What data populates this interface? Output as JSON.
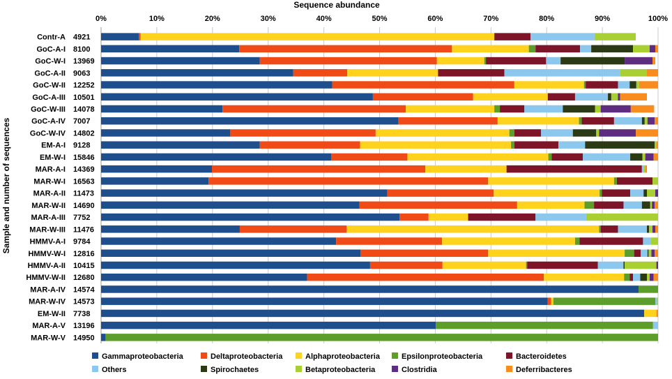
{
  "chart_data": {
    "type": "bar",
    "orientation": "horizontal",
    "stacked": true,
    "title": "Sequence abundance",
    "xlabel": "Sequence abundance",
    "ylabel": "Sample and number of sequences",
    "xlim": [
      0,
      100
    ],
    "x_tick_labels": [
      "0%",
      "10%",
      "20%",
      "30%",
      "40%",
      "50%",
      "60%",
      "70%",
      "80%",
      "90%",
      "100%"
    ],
    "grid": true,
    "legend_position": "bottom",
    "categories": [
      "Contr-A",
      "GoC-A-I",
      "GoC-W-I",
      "GoC-A-II",
      "GoC-W-II",
      "GoC-A-III",
      "GoC-W-III",
      "GoC-A-IV",
      "GoC-W-IV",
      "EM-A-I",
      "EM-W-I",
      "MAR-A-I",
      "MAR-W-I",
      "MAR-A-II",
      "MAR-W-II",
      "MAR-A-III",
      "MAR-W-III",
      "HMMV-A-I",
      "HMMV-W-I",
      "HMMV-A-II",
      "HMMV-W-II",
      "MAR-A-IV",
      "MAR-W-IV",
      "EM-W-II",
      "MAR-A-V",
      "MAR-W-V"
    ],
    "sequence_counts": [
      "4921",
      "8100",
      "13969",
      "9063",
      "12252",
      "10501",
      "14078",
      "7007",
      "14802",
      "9128",
      "15846",
      "14369",
      "16563",
      "11473",
      "14690",
      "7752",
      "11476",
      "9784",
      "12816",
      "10415",
      "12680",
      "14574",
      "14573",
      "7738",
      "13196",
      "14950"
    ],
    "series": [
      {
        "name": "Gammaproteobacteria",
        "color": "#1f4e8c",
        "values": [
          6.8,
          24.8,
          28.5,
          34.5,
          41.5,
          48.8,
          21.8,
          53.4,
          23.2,
          28.5,
          41.3,
          19.9,
          19.3,
          51.4,
          46.4,
          53.6,
          24.9,
          42.2,
          46.6,
          48.3,
          37.0,
          96.5,
          80.2,
          97.5,
          60.1,
          0.8
        ]
      },
      {
        "name": "Deltaproteobacteria",
        "color": "#f04b16",
        "values": [
          0.3,
          38.2,
          31.8,
          9.7,
          32.7,
          18.0,
          32.9,
          17.8,
          26.1,
          18.0,
          13.7,
          38.3,
          50.2,
          19.1,
          28.3,
          5.2,
          19.2,
          19.0,
          22.9,
          13.0,
          42.5,
          0.0,
          0.6,
          0.0,
          0.0,
          0.0
        ]
      },
      {
        "name": "Alphaproteobacteria",
        "color": "#ffd21e",
        "values": [
          63.5,
          13.8,
          8.5,
          16.3,
          12.5,
          13.4,
          15.9,
          14.6,
          24.0,
          27.1,
          25.3,
          14.6,
          22.6,
          19.0,
          12.1,
          7.1,
          45.3,
          23.9,
          24.5,
          15.0,
          14.4,
          0.0,
          0.4,
          2.2,
          0.0,
          0.0
        ]
      },
      {
        "name": "Epsilonproteobacteria",
        "color": "#5d9e2b",
        "values": [
          0.0,
          1.2,
          0.3,
          0.0,
          0.3,
          0.0,
          1.0,
          0.5,
          0.9,
          0.6,
          0.6,
          0.0,
          0.5,
          0.4,
          1.7,
          0.0,
          0.3,
          0.8,
          1.7,
          0.2,
          1.0,
          3.5,
          18.3,
          0.0,
          39.0,
          99.2
        ]
      },
      {
        "name": "Bacteroidetes",
        "color": "#7e1428",
        "values": [
          6.5,
          8.0,
          10.8,
          11.9,
          5.8,
          4.9,
          4.4,
          5.8,
          4.8,
          7.9,
          5.6,
          24.3,
          6.4,
          5.1,
          5.3,
          12.1,
          3.1,
          11.4,
          1.2,
          12.7,
          0.6,
          0.0,
          0.0,
          0.0,
          0.0,
          0.0
        ]
      },
      {
        "name": "Others",
        "color": "#8cc8ee",
        "values": [
          11.5,
          2.0,
          2.6,
          20.8,
          2.1,
          5.9,
          6.9,
          5.0,
          5.7,
          4.8,
          8.5,
          0.3,
          0.0,
          2.4,
          3.3,
          9.1,
          5.2,
          1.4,
          1.2,
          4.6,
          1.3,
          0.0,
          0.3,
          0.0,
          0.9,
          0.0
        ]
      },
      {
        "name": "Spirochaetes",
        "color": "#2b3a14",
        "values": [
          0.0,
          7.5,
          11.5,
          0.0,
          1.2,
          0.6,
          5.8,
          0.5,
          4.2,
          12.5,
          2.2,
          0.0,
          0.0,
          0.6,
          1.5,
          0.0,
          0.4,
          0.0,
          0.2,
          0.2,
          1.2,
          0.0,
          0.0,
          0.0,
          0.0,
          0.0
        ]
      },
      {
        "name": "Betaproteobacteria",
        "color": "#a8d032",
        "values": [
          7.4,
          3.0,
          0.0,
          4.8,
          0.5,
          1.2,
          1.0,
          0.5,
          0.5,
          0.3,
          0.5,
          0.3,
          1.0,
          1.5,
          0.3,
          12.9,
          0.6,
          1.3,
          0.5,
          5.7,
          0.5,
          0.0,
          0.2,
          0.0,
          0.0,
          0.0
        ]
      },
      {
        "name": "Clostridia",
        "color": "#5e2d80",
        "values": [
          0.0,
          1.0,
          5.0,
          0.0,
          0.0,
          0.4,
          5.4,
          1.3,
          6.6,
          0.0,
          1.5,
          0.0,
          0.0,
          0.5,
          0.5,
          0.0,
          0.5,
          0.0,
          0.6,
          0.3,
          0.7,
          0.0,
          0.0,
          0.0,
          0.0,
          0.0
        ]
      },
      {
        "name": "Deferribacteres",
        "color": "#f88c1e",
        "values": [
          0.0,
          0.5,
          0.5,
          2.0,
          3.4,
          4.8,
          4.2,
          0.6,
          4.0,
          0.3,
          0.8,
          0.3,
          0.0,
          0.0,
          0.6,
          0.0,
          0.5,
          0.0,
          0.6,
          0.0,
          0.8,
          0.0,
          0.0,
          0.3,
          0.0,
          0.0
        ]
      }
    ]
  }
}
